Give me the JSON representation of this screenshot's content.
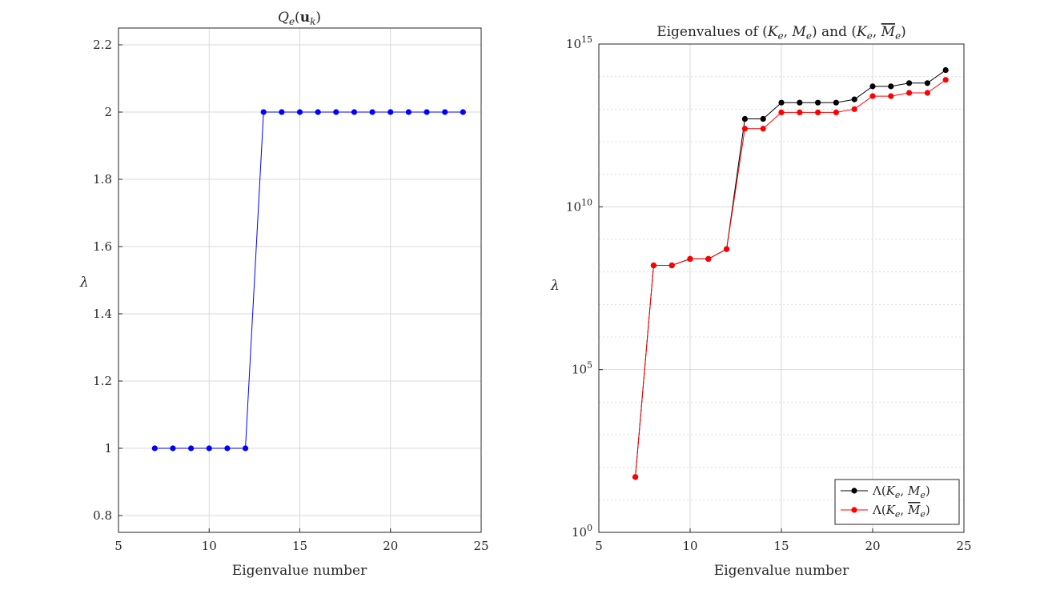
{
  "chart_data": [
    {
      "type": "line",
      "title": "Q_e(u_k)",
      "title_parts": [
        "Q",
        "e",
        "(",
        "u",
        "k",
        ")"
      ],
      "xlabel": "Eigenvalue number",
      "ylabel": "λ",
      "xlim": [
        5,
        25
      ],
      "ylim": [
        0.75,
        2.25
      ],
      "xticks": [
        5,
        10,
        15,
        20,
        25
      ],
      "yticks": [
        0.8,
        1,
        1.2,
        1.4,
        1.6,
        1.8,
        2,
        2.2
      ],
      "ytick_labels": [
        "0.8",
        "1",
        "1.2",
        "1.4",
        "1.6",
        "1.8",
        "2",
        "2.2"
      ],
      "grid": true,
      "series": [
        {
          "name": "Q_e(u_k)",
          "color": "#0000ff",
          "x": [
            7,
            8,
            9,
            10,
            11,
            12,
            13,
            14,
            15,
            16,
            17,
            18,
            19,
            20,
            21,
            22,
            23,
            24
          ],
          "values": [
            1,
            1,
            1,
            1,
            1,
            1,
            2,
            2,
            2,
            2,
            2,
            2,
            2,
            2,
            2,
            2,
            2,
            2
          ]
        }
      ]
    },
    {
      "type": "line",
      "title": "Eigenvalues of (K_e, M_e) and (K_e, M̄_e)",
      "title_parts": [
        "Eigenvalues of (",
        "K",
        "e",
        ", ",
        "M",
        "e",
        ") and (",
        "K",
        "e",
        ", ",
        "M",
        "e",
        ")"
      ],
      "xlabel": "Eigenvalue number",
      "ylabel": "λ",
      "yscale": "log",
      "xlim": [
        5,
        25
      ],
      "ylim_log10": [
        0,
        15
      ],
      "xticks": [
        5,
        10,
        15,
        20,
        25
      ],
      "ytick_exponents": [
        0,
        5,
        10,
        15
      ],
      "ytick_base": "10",
      "ytick_sup": [
        "0",
        "5",
        "10",
        "15"
      ],
      "grid": true,
      "legend": "bottom-right",
      "legend_labels": [
        [
          "Λ(",
          "K",
          "e",
          ", ",
          "M",
          "e",
          ")"
        ],
        [
          "Λ(",
          "K",
          "e",
          ", ",
          "M",
          "e",
          ")"
        ]
      ],
      "series": [
        {
          "name": "Λ(K_e, M_e)",
          "color": "#000000",
          "x": [
            7,
            8,
            9,
            10,
            11,
            12,
            13,
            14,
            15,
            16,
            17,
            18,
            19,
            20,
            21,
            22,
            23,
            24
          ],
          "log10_values": [
            1.7,
            8.2,
            8.2,
            8.4,
            8.4,
            8.7,
            12.7,
            12.7,
            13.2,
            13.2,
            13.2,
            13.2,
            13.3,
            13.7,
            13.7,
            13.8,
            13.8,
            14.2
          ]
        },
        {
          "name": "Λ(K_e, M̄_e)",
          "color": "#ff0000",
          "x": [
            7,
            8,
            9,
            10,
            11,
            12,
            13,
            14,
            15,
            16,
            17,
            18,
            19,
            20,
            21,
            22,
            23,
            24
          ],
          "log10_values": [
            1.7,
            8.2,
            8.2,
            8.4,
            8.4,
            8.7,
            12.4,
            12.4,
            12.9,
            12.9,
            12.9,
            12.9,
            13.0,
            13.4,
            13.4,
            13.5,
            13.5,
            13.9
          ]
        }
      ]
    }
  ]
}
